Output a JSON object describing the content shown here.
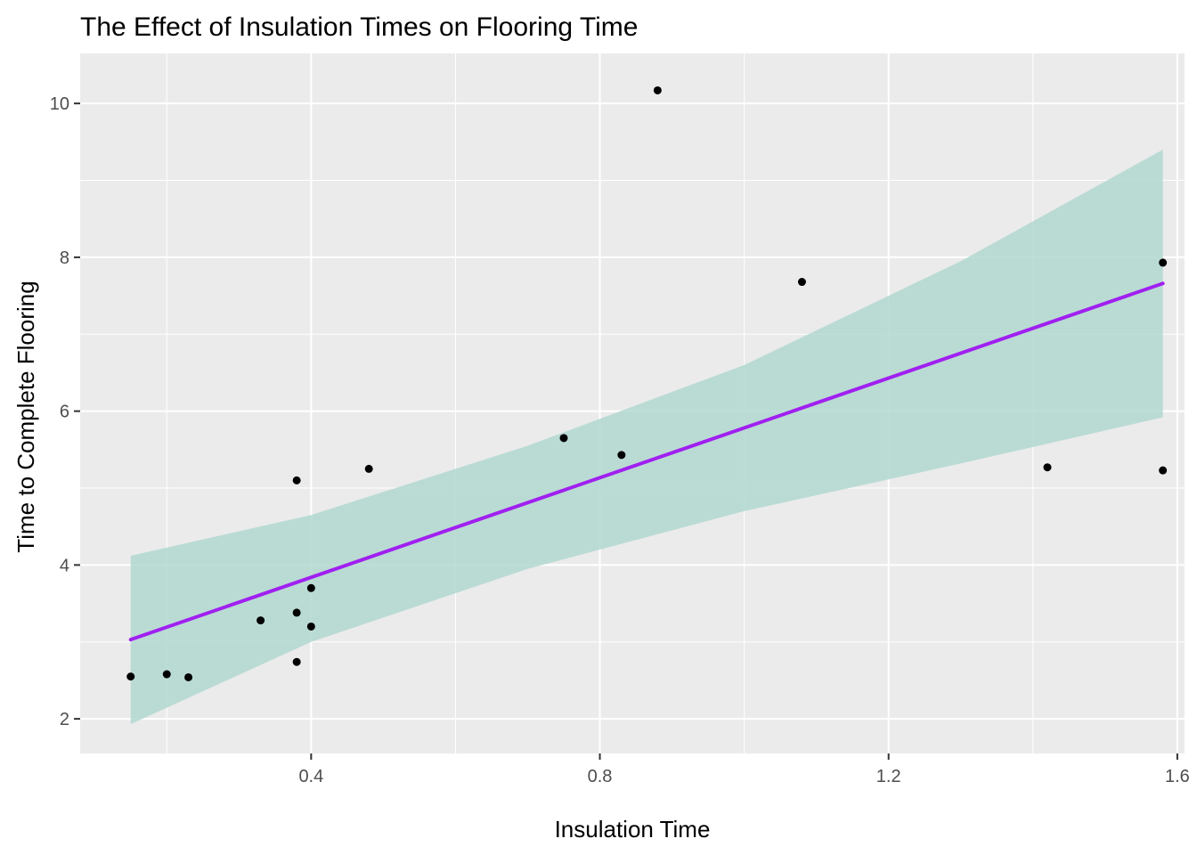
{
  "chart_data": {
    "type": "scatter",
    "title": "The Effect of Insulation Times on Flooring Time",
    "xlabel": "Insulation Time",
    "ylabel": "Time to Complete Flooring",
    "xlim": [
      0.08,
      1.61
    ],
    "ylim": [
      1.55,
      10.65
    ],
    "x_ticks": [
      0.4,
      0.8,
      1.2,
      1.6
    ],
    "x_tick_labels": [
      "0.4",
      "0.8",
      "1.2",
      "1.6"
    ],
    "y_ticks": [
      2,
      4,
      6,
      8,
      10
    ],
    "y_tick_labels": [
      "2",
      "4",
      "6",
      "8",
      "10"
    ],
    "grid": true,
    "points": [
      {
        "x": 0.15,
        "y": 2.55
      },
      {
        "x": 0.2,
        "y": 2.58
      },
      {
        "x": 0.23,
        "y": 2.54
      },
      {
        "x": 0.33,
        "y": 3.28
      },
      {
        "x": 0.38,
        "y": 3.38
      },
      {
        "x": 0.38,
        "y": 2.74
      },
      {
        "x": 0.38,
        "y": 5.1
      },
      {
        "x": 0.4,
        "y": 3.7
      },
      {
        "x": 0.4,
        "y": 3.2
      },
      {
        "x": 0.48,
        "y": 5.25
      },
      {
        "x": 0.75,
        "y": 5.65
      },
      {
        "x": 0.83,
        "y": 5.43
      },
      {
        "x": 0.88,
        "y": 10.17
      },
      {
        "x": 1.08,
        "y": 7.68
      },
      {
        "x": 1.42,
        "y": 5.27
      },
      {
        "x": 1.58,
        "y": 7.93
      },
      {
        "x": 1.58,
        "y": 5.23
      }
    ],
    "fit_line": {
      "x": [
        0.15,
        1.58
      ],
      "y": [
        3.03,
        7.66
      ],
      "color": "#a020f0"
    },
    "confidence_band": {
      "x": [
        0.15,
        0.4,
        0.7,
        1.0,
        1.3,
        1.58
      ],
      "lower": [
        1.93,
        3.0,
        3.95,
        4.7,
        5.32,
        5.92
      ],
      "upper": [
        4.12,
        4.65,
        5.55,
        6.6,
        7.95,
        9.4
      ],
      "color": "#b2d8d0"
    },
    "point_color": "#000000",
    "panel_background": "#ebebeb"
  }
}
